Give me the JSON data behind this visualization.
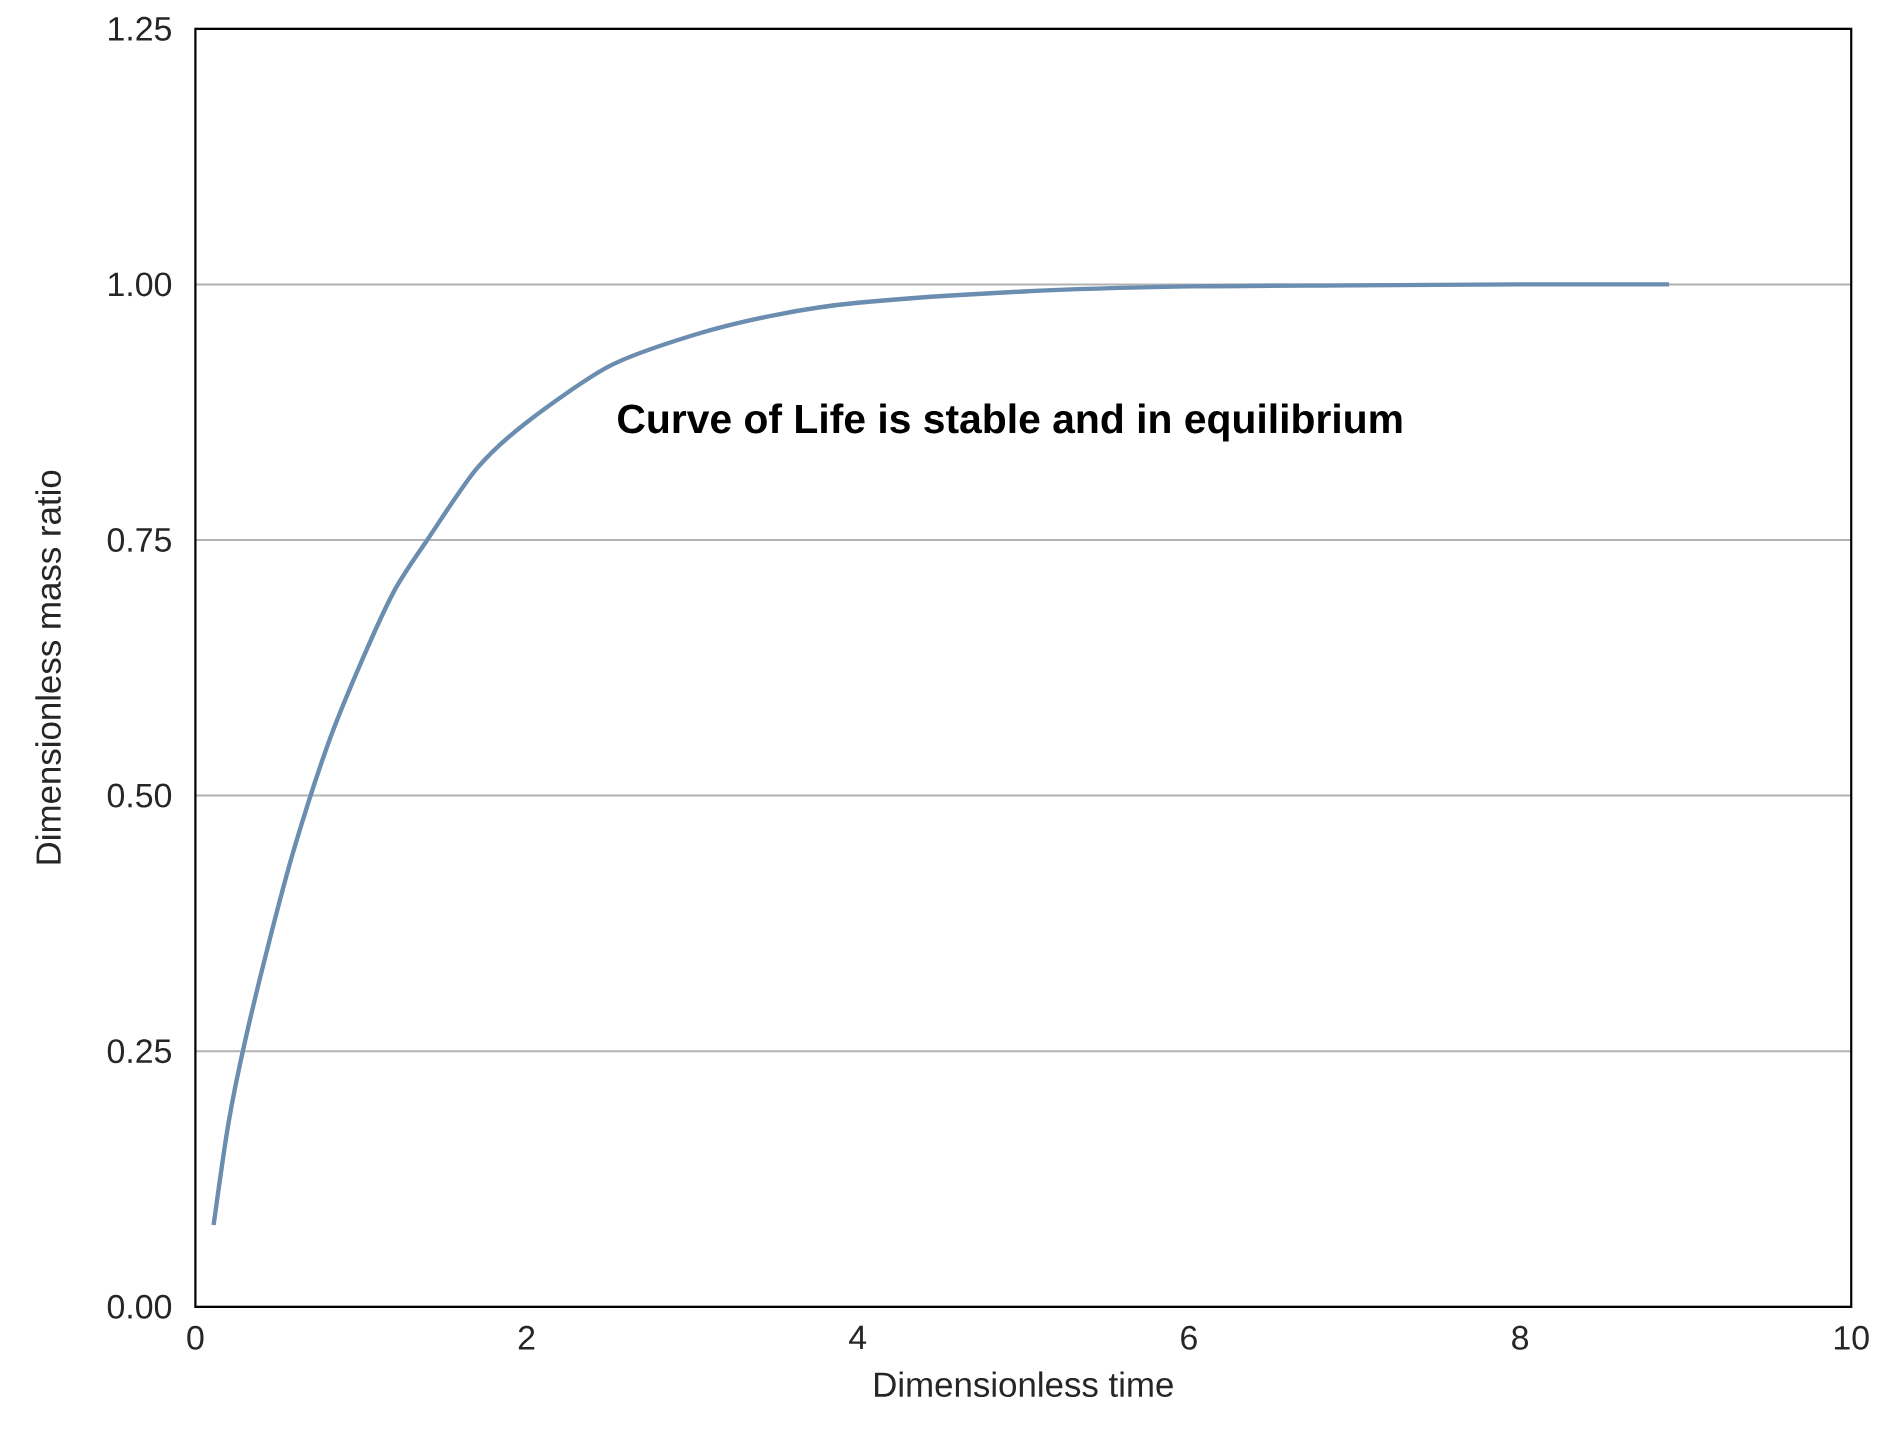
{
  "chart_data": {
    "type": "line",
    "xlabel": "Dimensionless time",
    "ylabel": "Dimensionless mass ratio",
    "annotations": [
      "Curve of Life is stable and in equilibrium"
    ],
    "xlim": [
      0,
      10
    ],
    "xticks": [
      0,
      2,
      4,
      6,
      8,
      10
    ],
    "ylim": [
      0,
      1.25
    ],
    "yticks": [
      {
        "value": 0,
        "label": "0.00"
      },
      {
        "value": 0.25,
        "label": "0.25"
      },
      {
        "value": 0.5,
        "label": "0.50"
      },
      {
        "value": 0.75,
        "label": "0.75"
      },
      {
        "value": 1,
        "label": "1.00"
      },
      {
        "value": 1.25,
        "label": "1.25"
      }
    ],
    "grid": "y",
    "marker": "none",
    "line_style": "solid",
    "series": [
      {
        "color": "#6a8db0",
        "x": [
          0.11,
          0.2,
          0.3,
          0.45,
          0.6,
          0.8,
          1.0,
          1.2,
          1.4,
          1.7,
          2.0,
          2.5,
          3.0,
          3.5,
          4.0,
          5.0,
          6.0,
          7.0,
          8.0,
          8.9
        ],
        "values": [
          0.08,
          0.18,
          0.26,
          0.36,
          0.45,
          0.55,
          0.63,
          0.7,
          0.75,
          0.82,
          0.865,
          0.92,
          0.95,
          0.97,
          0.982,
          0.993,
          0.998,
          0.999,
          1.0,
          1.0
        ]
      }
    ]
  }
}
